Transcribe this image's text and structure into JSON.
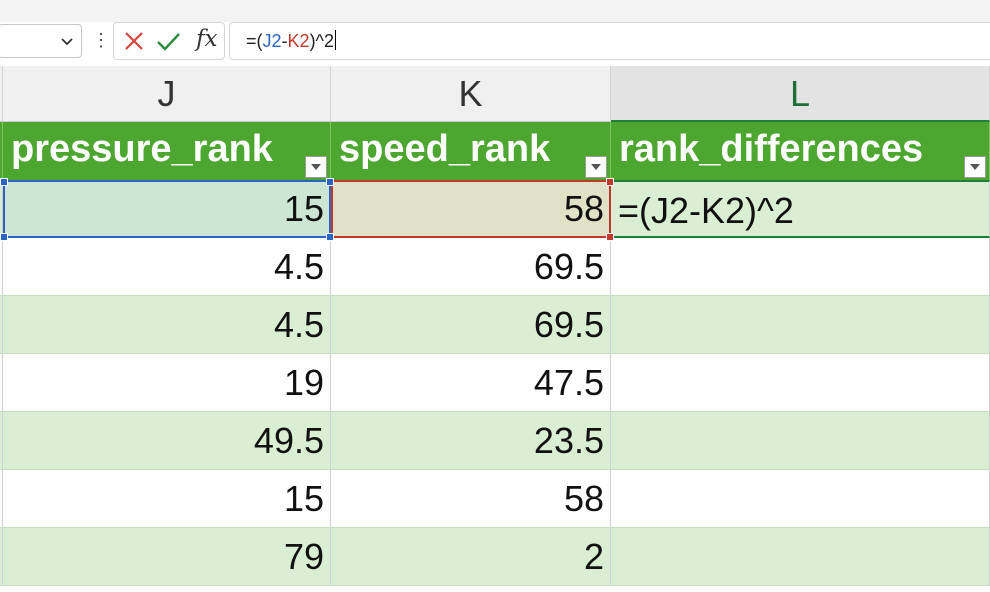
{
  "formula_bar": {
    "name_box_value": "",
    "formula_prefix": "=(",
    "formula_ref1": "J2",
    "formula_op": "-",
    "formula_ref2": "K2",
    "formula_suffix": ")^2"
  },
  "columns": {
    "j": "J",
    "k": "K",
    "l": "L"
  },
  "table_headers": {
    "j": "pressure_rank",
    "k": "speed_rank",
    "l": "rank_differences"
  },
  "rows": [
    {
      "j": "15",
      "k": "58",
      "l": "=(J2-K2)^2"
    },
    {
      "j": "4.5",
      "k": "69.5",
      "l": ""
    },
    {
      "j": "4.5",
      "k": "69.5",
      "l": ""
    },
    {
      "j": "19",
      "k": "47.5",
      "l": ""
    },
    {
      "j": "49.5",
      "k": "23.5",
      "l": ""
    },
    {
      "j": "15",
      "k": "58",
      "l": ""
    },
    {
      "j": "79",
      "k": "2",
      "l": ""
    }
  ],
  "colors": {
    "header_green": "#4ca630",
    "band_green": "#d9eed2",
    "ref_blue": "#2a64c4",
    "ref_red": "#c0392b"
  },
  "icons": [
    "chevron-down-icon",
    "more-vertical-icon",
    "cancel-icon",
    "enter-check-icon",
    "fx-icon",
    "filter-dropdown-icon"
  ]
}
